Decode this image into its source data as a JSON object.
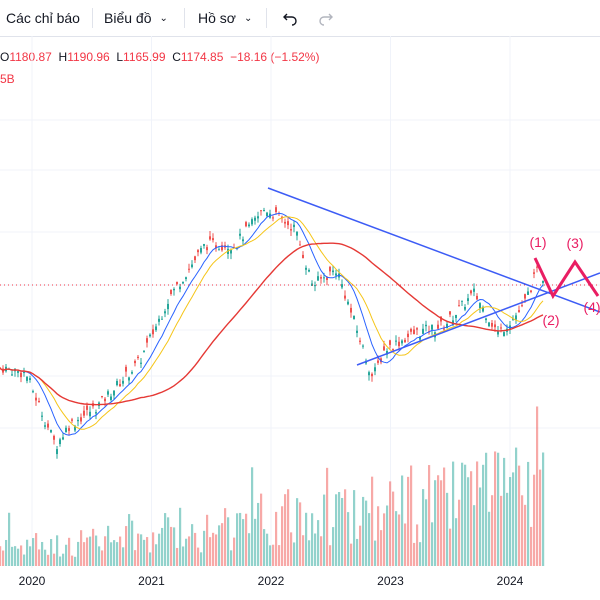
{
  "toolbar": {
    "indicators_label": "Các chỉ báo",
    "chart_label": "Biểu đồ",
    "profile_label": "Hồ sơ",
    "undo_icon": "undo-icon",
    "redo_icon": "redo-icon"
  },
  "legend": {
    "o_key": "O",
    "o_val": "1180.87",
    "h_key": "H",
    "h_val": "1190.96",
    "l_key": "L",
    "l_val": "1165.99",
    "c_key": "C",
    "c_val": "1174.85",
    "change": "−18.16 (−1.52%)",
    "volume_fragment": "5B"
  },
  "chart_data": {
    "type": "candlestick",
    "x_ticks": [
      "2020",
      "2021",
      "2022",
      "2023",
      "2024"
    ],
    "price_points": [
      {
        "year": 2019.55,
        "price": 960
      },
      {
        "year": 2019.75,
        "price": 975
      },
      {
        "year": 2019.95,
        "price": 960
      },
      {
        "year": 2020.2,
        "price": 780
      },
      {
        "year": 2020.3,
        "price": 830
      },
      {
        "year": 2020.55,
        "price": 880
      },
      {
        "year": 2020.9,
        "price": 990
      },
      {
        "year": 2021.15,
        "price": 1150
      },
      {
        "year": 2021.45,
        "price": 1280
      },
      {
        "year": 2021.7,
        "price": 1280
      },
      {
        "year": 2021.95,
        "price": 1370
      },
      {
        "year": 2022.2,
        "price": 1320
      },
      {
        "year": 2022.35,
        "price": 1180
      },
      {
        "year": 2022.55,
        "price": 1220
      },
      {
        "year": 2022.85,
        "price": 950
      },
      {
        "year": 2022.95,
        "price": 1020
      },
      {
        "year": 2023.2,
        "price": 1060
      },
      {
        "year": 2023.45,
        "price": 1080
      },
      {
        "year": 2023.7,
        "price": 1160
      },
      {
        "year": 2023.9,
        "price": 1060
      },
      {
        "year": 2024.1,
        "price": 1120
      },
      {
        "year": 2024.25,
        "price": 1230
      },
      {
        "year": 2024.3,
        "price": 1175
      }
    ],
    "wave_labels": [
      "(1)",
      "(2)",
      "(3)",
      "(4)"
    ],
    "colors": {
      "up": "#26a69a",
      "down": "#ef5350",
      "ma_long": "#e53935",
      "ma_short": "#f5c518",
      "ma_mid": "#2962ff",
      "trend": "#3d5cf5",
      "wave": "#e91e63",
      "current_price_line": "#f23645"
    }
  }
}
